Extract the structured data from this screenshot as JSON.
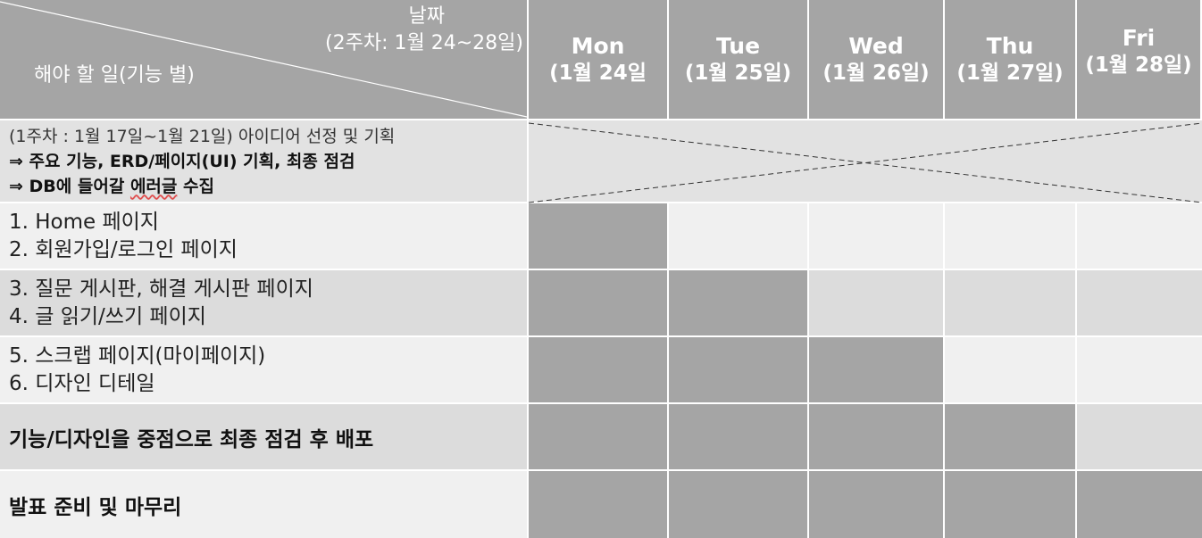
{
  "header": {
    "corner_date_label": "날짜",
    "corner_week_label": "(2주차: 1월 24~28일)",
    "corner_task_label": "해야 할 일(기능 별)",
    "days": [
      {
        "name": "Mon",
        "date": "(1월 24일"
      },
      {
        "name": "Tue",
        "date": "(1월 25일)"
      },
      {
        "name": "Wed",
        "date": "(1월 26일)"
      },
      {
        "name": "Thu",
        "date": "(1월 27일)"
      },
      {
        "name": "Fri",
        "date": "(1월 28일)"
      }
    ]
  },
  "intro": {
    "line1": "(1주차 : 1월 17일~1월 21일) 아이디어 선정 및 기획",
    "line2_prefix": "⇒ 주요 기능, ERD/페이지(UI) 기획, 최종 점검",
    "line3_prefix": "⇒ DB에 들어갈 ",
    "line3_wavy": "에러글",
    "line3_suffix": " 수집"
  },
  "tasks": [
    {
      "line1": "1. Home 페이지",
      "line2": "2. 회원가입/로그인 페이지",
      "filled_days": 1
    },
    {
      "line1": "3. 질문 게시판, 해결 게시판 페이지",
      "line2": "4. 글 읽기/쓰기 페이지",
      "filled_days": 2
    },
    {
      "line1": "5. 스크랩 페이지(마이페이지)",
      "line2": "6. 디자인 디테일",
      "filled_days": 3
    },
    {
      "line1": "기능/디자인을 중점으로 최종 점검 후 배포",
      "line2": "",
      "filled_days": 4
    },
    {
      "line1": "발표 준비 및 마무리",
      "line2": "",
      "filled_days": 5
    }
  ],
  "colors": {
    "header_bg": "#a5a5a5",
    "filled_cell": "#a5a5a5",
    "row_light": "#f0f0f0",
    "row_mid": "#dcdcdc"
  }
}
